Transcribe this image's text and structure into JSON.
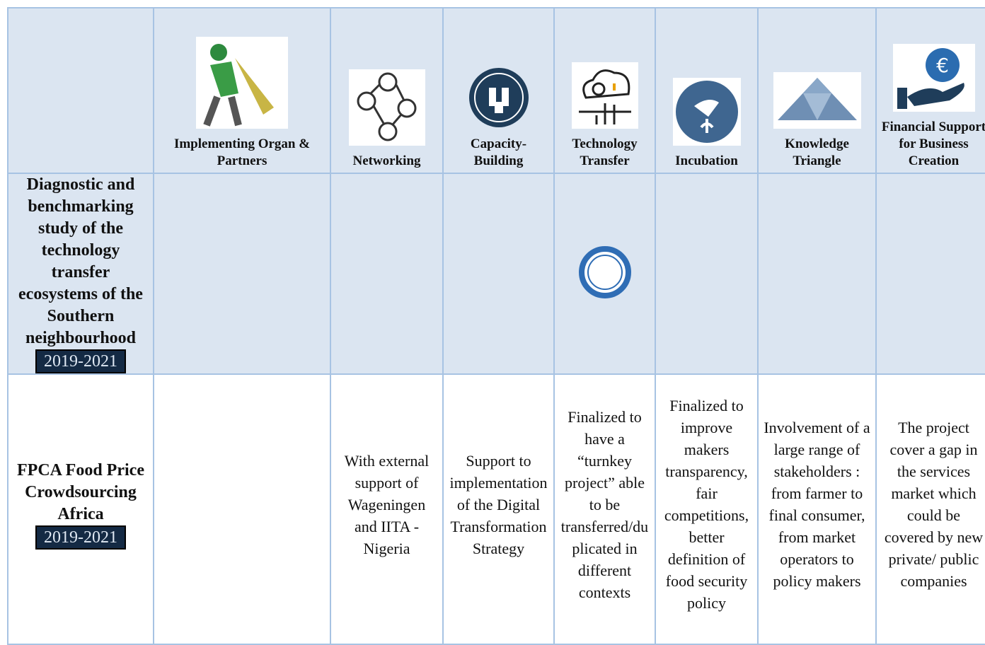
{
  "table": {
    "header": [
      "Implementing Organ & Partners",
      "Networking",
      "Capacity-Building",
      "Technology Transfer",
      "Incubation",
      "Knowledge Triangle",
      "Financial Support for Business Creation"
    ],
    "rows": [
      {
        "title": "Diagnostic and benchmarking study of the technology transfer ecosystems of the Southern neighbourhood",
        "period": "2019-2021"
      },
      {
        "title": "FPCA Food Price Crowdsourcing Africa",
        "period": "2019-2021",
        "cells": [
          "With external support of Wageningen and IITA - Nigeria",
          "Support to implementation of the Digital Transformation Strategy",
          "Finalized to have a “turnkey project” able to be transferred/duplicated in different contexts",
          "Finalized to improve makers transparency, fair competitions, better definition of food security policy",
          "Involvement of a large range of stakeholders : from farmer to final consumer, from market operators to policy makers",
          "The project cover a gap in the services market which could be covered by new private/ public companies"
        ]
      }
    ]
  }
}
